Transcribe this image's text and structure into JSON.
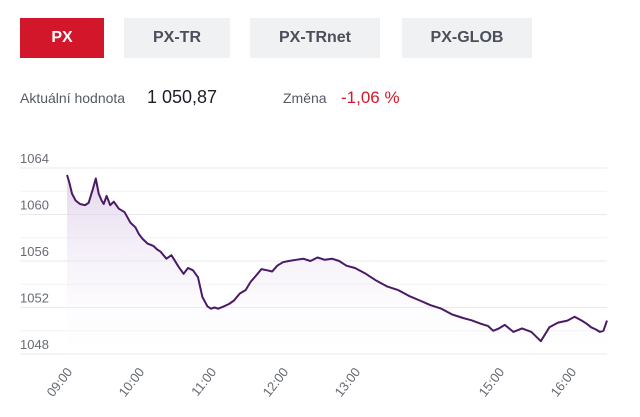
{
  "tabs": [
    {
      "label": "PX",
      "active": true
    },
    {
      "label": "PX-TR",
      "active": false
    },
    {
      "label": "PX-TRnet",
      "active": false
    },
    {
      "label": "PX-GLOB",
      "active": false
    }
  ],
  "summary": {
    "current_label": "Aktuální hodnota",
    "current_value": "1 050,87",
    "change_label": "Změna",
    "change_value": "-1,06 %"
  },
  "colors": {
    "accent": "#d3172a",
    "line": "#4a1a66",
    "fill": "#efe8f4"
  },
  "chart_data": {
    "type": "area",
    "title": "",
    "xlabel": "",
    "ylabel": "",
    "ylim": [
      1048,
      1064
    ],
    "yticks": [
      1048,
      1052,
      1056,
      1060,
      1064
    ],
    "xticks": [
      "09:00",
      "10:00",
      "11:00",
      "12:00",
      "13:00",
      "15:00",
      "16:00"
    ],
    "xtick_hours": [
      9,
      10,
      11,
      12,
      13,
      15,
      16
    ],
    "grid": true,
    "legend": "none",
    "x_hours": [
      9.0,
      9.03,
      9.07,
      9.12,
      9.18,
      9.25,
      9.3,
      9.36,
      9.4,
      9.44,
      9.48,
      9.51,
      9.55,
      9.6,
      9.65,
      9.72,
      9.8,
      9.88,
      9.95,
      10.0,
      10.05,
      10.12,
      10.2,
      10.25,
      10.3,
      10.38,
      10.45,
      10.55,
      10.62,
      10.68,
      10.75,
      10.82,
      10.88,
      10.95,
      11.0,
      11.05,
      11.1,
      11.18,
      11.25,
      11.32,
      11.4,
      11.48,
      11.55,
      11.62,
      11.7,
      11.78,
      11.85,
      11.92,
      12.0,
      12.08,
      12.18,
      12.28,
      12.38,
      12.48,
      12.58,
      12.68,
      12.78,
      12.88,
      13.0,
      13.15,
      13.3,
      13.45,
      13.6,
      13.75,
      13.9,
      14.05,
      14.2,
      14.35,
      14.5,
      14.62,
      14.75,
      14.85,
      14.92,
      15.0,
      15.08,
      15.2,
      15.32,
      15.45,
      15.58,
      15.7,
      15.82,
      15.95,
      16.05,
      16.15,
      16.22,
      16.28,
      16.35,
      16.4,
      16.45,
      16.5
    ],
    "y": [
      1063.4,
      1062.8,
      1061.8,
      1061.2,
      1060.9,
      1060.8,
      1061.0,
      1062.2,
      1063.1,
      1061.8,
      1061.2,
      1060.9,
      1061.6,
      1060.8,
      1061.1,
      1060.5,
      1060.2,
      1059.3,
      1058.9,
      1058.3,
      1057.9,
      1057.5,
      1057.3,
      1057.0,
      1056.8,
      1056.2,
      1056.5,
      1055.5,
      1054.9,
      1055.4,
      1055.2,
      1054.6,
      1052.9,
      1052.1,
      1051.9,
      1052.0,
      1051.9,
      1052.1,
      1052.3,
      1052.6,
      1053.2,
      1053.5,
      1054.2,
      1054.7,
      1055.3,
      1055.2,
      1055.1,
      1055.6,
      1055.9,
      1056.0,
      1056.1,
      1056.2,
      1056.0,
      1056.3,
      1056.1,
      1056.2,
      1056.0,
      1055.6,
      1055.4,
      1054.9,
      1054.3,
      1053.8,
      1053.5,
      1053.0,
      1052.6,
      1052.2,
      1051.9,
      1051.4,
      1051.1,
      1050.9,
      1050.6,
      1050.4,
      1050.0,
      1050.2,
      1050.5,
      1049.9,
      1050.2,
      1049.9,
      1049.1,
      1050.3,
      1050.7,
      1050.87,
      1051.2,
      1050.87,
      1050.6,
      1050.3,
      1050.1,
      1049.9,
      1050.0,
      1050.87
    ]
  }
}
